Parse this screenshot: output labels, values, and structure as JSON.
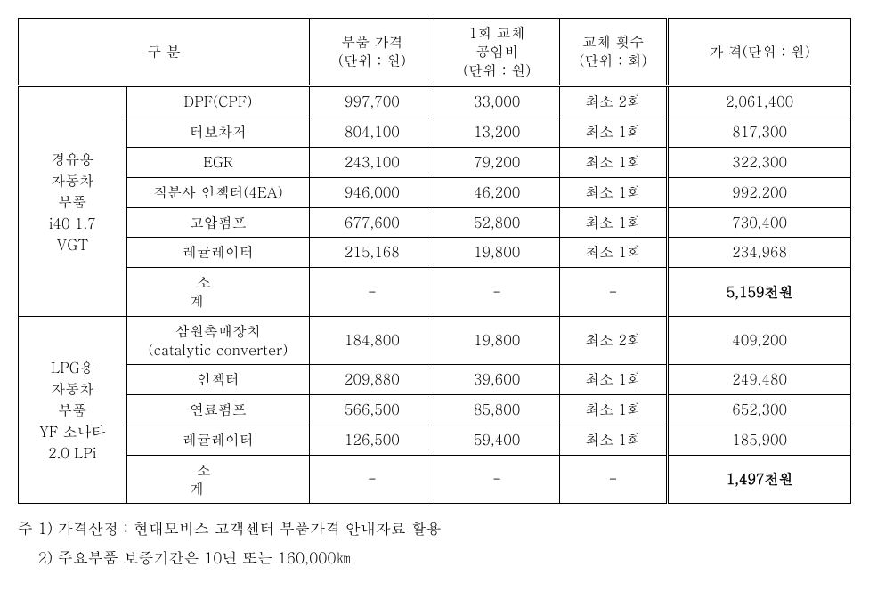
{
  "table": {
    "headers": {
      "category": "구          분",
      "part_price": "부품 가격",
      "part_price_unit": "(단위 : 원)",
      "labor_cost": "1회 교체",
      "labor_cost2": "공임비",
      "labor_cost_unit": "(단위 : 원)",
      "replace_count": "교체 횟수",
      "replace_count_unit": "(단위 : 회)",
      "total_price": "가 격(단위 : 원)"
    },
    "group1": {
      "label_line1": "경유용",
      "label_line2": "자동차",
      "label_line3": "부품",
      "label_line4": "i40 1.7",
      "label_line5": "VGT",
      "rows": [
        {
          "part": "DPF(CPF)",
          "price": "997,700",
          "labor": "33,000",
          "count": "최소 2회",
          "total": "2,061,400"
        },
        {
          "part": "터보차저",
          "price": "804,100",
          "labor": "13,200",
          "count": "최소 1회",
          "total": "817,300"
        },
        {
          "part": "EGR",
          "price": "243,100",
          "labor": "79,200",
          "count": "최소 1회",
          "total": "322,300"
        },
        {
          "part": "직분사 인젝터(4EA)",
          "price": "946,000",
          "labor": "46,200",
          "count": "최소 1회",
          "total": "992,200"
        },
        {
          "part": "고압펌프",
          "price": "677,600",
          "labor": "52,800",
          "count": "최소 1회",
          "total": "730,400"
        },
        {
          "part": "레귤레이터",
          "price": "215,168",
          "labor": "19,800",
          "count": "최소 1회",
          "total": "234,968"
        }
      ],
      "subtotal_label": "소  계",
      "subtotal_value": "5,159천원"
    },
    "group2": {
      "label_line1": "LPG용",
      "label_line2": "자동차",
      "label_line3": "부품",
      "label_line4": "YF 소나타",
      "label_line5": "2.0 LPi",
      "rows": [
        {
          "part_line1": "삼원촉매장치",
          "part_line2": "(catalytic converter)",
          "price": "184,800",
          "labor": "19,800",
          "count": "최소 2회",
          "total": "409,200"
        },
        {
          "part": "인젝터",
          "price": "209,880",
          "labor": "39,600",
          "count": "최소 1회",
          "total": "249,480"
        },
        {
          "part": "연료펌프",
          "price": "566,500",
          "labor": "85,800",
          "count": "최소 1회",
          "total": "652,300"
        },
        {
          "part": "레귤레이터",
          "price": "126,500",
          "labor": "59,400",
          "count": "최소 1회",
          "total": "185,900"
        }
      ],
      "subtotal_label": "소  계",
      "subtotal_value": "1,497천원"
    }
  },
  "notes": {
    "note1": "주 1) 가격산정 : 현대모비스 고객센터 부품가격 안내자료 활용",
    "note2": "    2) 주요부품 보증기간은 10년 또는 160,000㎞"
  },
  "styling": {
    "font_family": "Malgun Gothic, Batang, serif",
    "font_size_table": 16,
    "font_size_notes": 17,
    "text_color": "#000000",
    "background_color": "#ffffff",
    "border_color": "#000000",
    "border_width": 1,
    "double_border_width": 3,
    "container_width": 936
  }
}
